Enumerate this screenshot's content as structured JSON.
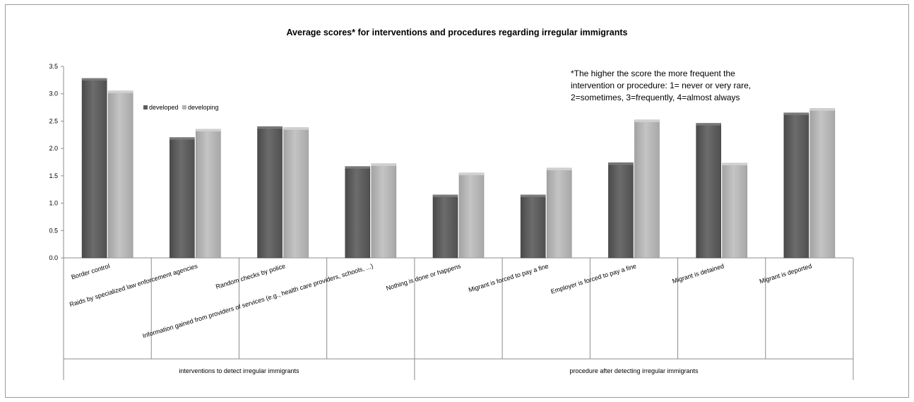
{
  "chart_data": {
    "type": "bar",
    "title": "Average scores* for interventions and procedures regarding irregular immigrants",
    "note_lines": [
      "*The higher the score the more frequent  the",
      "intervention or procedure: 1= never or very rare,",
      "2=sometimes, 3=frequently, 4=almost always"
    ],
    "categories": [
      "Border control",
      "Raids by specialized law enforcement agencies",
      "Random checks by police",
      "Information gained from providers of services (e.g., health care providers, schools, ...)",
      "Nothing is done or happens",
      "Migrant is forced to pay a fine",
      "Employer is forced to pay a fine",
      "Migrant is detained",
      "Migrant is deported"
    ],
    "groups": [
      {
        "label": "interventions to detect irregular immigrants",
        "span": [
          0,
          3
        ]
      },
      {
        "label": "procedure after detecting irregular immigrants",
        "span": [
          4,
          8
        ]
      }
    ],
    "series": [
      {
        "name": "developed",
        "color": "#5d5d5d",
        "values": [
          3.28,
          2.2,
          2.4,
          1.67,
          1.15,
          1.15,
          1.74,
          2.46,
          2.65
        ]
      },
      {
        "name": "developing",
        "color": "#b3b3b3",
        "values": [
          3.05,
          2.35,
          2.38,
          1.72,
          1.55,
          1.64,
          2.52,
          1.73,
          2.73
        ]
      }
    ],
    "yticks": [
      "0.0",
      "0.5",
      "1.0",
      "1.5",
      "2.0",
      "2.5",
      "3.0",
      "3.5"
    ],
    "ylim": [
      0,
      3.5
    ],
    "legend_position": "left",
    "grid": false
  }
}
